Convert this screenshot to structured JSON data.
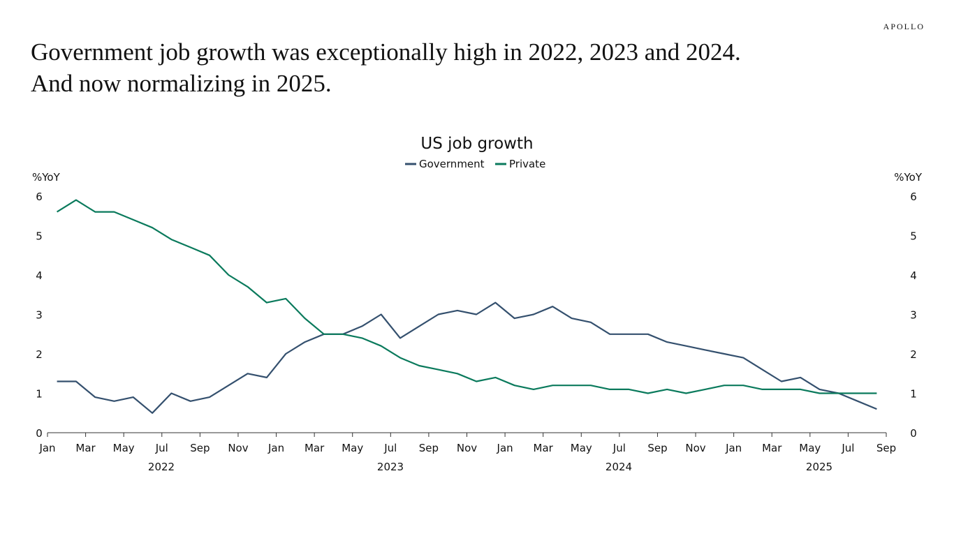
{
  "logo": "APOLLO",
  "headline": [
    "Government job growth was exceptionally high in 2022, 2023 and 2024.",
    "And now normalizing in 2025."
  ],
  "chart_data": {
    "type": "line",
    "title": "US job growth",
    "ylabel_left": "%YoY",
    "ylabel_right": "%YoY",
    "ylim": [
      0,
      6
    ],
    "yticks": [
      "0",
      "1",
      "2",
      "3",
      "4",
      "5",
      "6"
    ],
    "x_start": "2022-01",
    "x_end": "2025-09",
    "xtick_labels": [
      "Jan",
      "Mar",
      "May",
      "Jul",
      "Sep",
      "Nov",
      "Jan",
      "Mar",
      "May",
      "Jul",
      "Sep",
      "Nov",
      "Jan",
      "Mar",
      "May",
      "Jul",
      "Sep",
      "Nov",
      "Jan",
      "Mar",
      "May",
      "Jul",
      "Sep"
    ],
    "year_labels": [
      "2022",
      "2023",
      "2024",
      "2025"
    ],
    "legend_position": "top-center",
    "grid": false,
    "x": [
      "2022-01",
      "2022-02",
      "2022-03",
      "2022-04",
      "2022-05",
      "2022-06",
      "2022-07",
      "2022-08",
      "2022-09",
      "2022-10",
      "2022-11",
      "2022-12",
      "2023-01",
      "2023-02",
      "2023-03",
      "2023-04",
      "2023-05",
      "2023-06",
      "2023-07",
      "2023-08",
      "2023-09",
      "2023-10",
      "2023-11",
      "2023-12",
      "2024-01",
      "2024-02",
      "2024-03",
      "2024-04",
      "2024-05",
      "2024-06",
      "2024-07",
      "2024-08",
      "2024-09",
      "2024-10",
      "2024-11",
      "2024-12",
      "2025-01",
      "2025-02",
      "2025-03",
      "2025-04",
      "2025-05",
      "2025-06",
      "2025-07",
      "2025-08"
    ],
    "series": [
      {
        "name": "Government",
        "color": "#34506e",
        "values": [
          1.3,
          1.3,
          0.9,
          0.8,
          0.9,
          0.5,
          1.0,
          0.8,
          0.9,
          1.2,
          1.5,
          1.4,
          2.0,
          2.3,
          2.5,
          2.5,
          2.7,
          3.0,
          2.4,
          2.7,
          3.0,
          3.1,
          3.0,
          3.3,
          2.9,
          3.0,
          3.2,
          2.9,
          2.8,
          2.5,
          2.5,
          2.5,
          2.3,
          2.2,
          2.1,
          2.0,
          1.9,
          1.6,
          1.3,
          1.4,
          1.1,
          1.0,
          0.8,
          0.6
        ]
      },
      {
        "name": "Private",
        "color": "#0a7a5c",
        "values": [
          5.6,
          5.9,
          5.6,
          5.6,
          5.4,
          5.2,
          4.9,
          4.7,
          4.5,
          4.0,
          3.7,
          3.3,
          3.4,
          2.9,
          2.5,
          2.5,
          2.4,
          2.2,
          1.9,
          1.7,
          1.6,
          1.5,
          1.3,
          1.4,
          1.2,
          1.1,
          1.2,
          1.2,
          1.2,
          1.1,
          1.1,
          1.0,
          1.1,
          1.0,
          1.1,
          1.2,
          1.2,
          1.1,
          1.1,
          1.1,
          1.0,
          1.0,
          1.0,
          1.0
        ]
      }
    ]
  }
}
